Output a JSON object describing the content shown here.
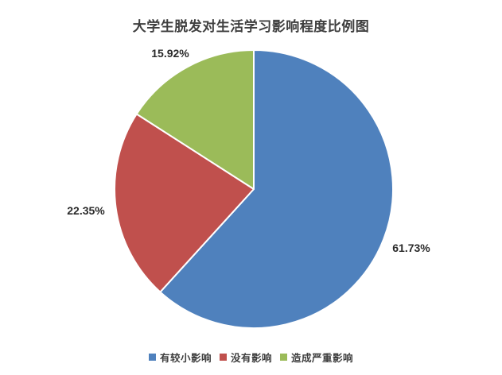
{
  "chart_data": {
    "type": "pie",
    "title": "大学生脱发对生活学习影响程度比例图",
    "categories": [
      "有较小影响",
      "没有影响",
      "造成严重影响"
    ],
    "values": [
      61.73,
      22.35,
      15.92
    ],
    "labels": [
      "61.73%",
      "22.35%",
      "15.92%"
    ],
    "colors": [
      "#4f81bd",
      "#c0504d",
      "#9bbb59"
    ],
    "start_angle_deg": 0,
    "direction": "clockwise",
    "legend_position": "bottom",
    "separator_color": "#ffffff",
    "background_color": "#ffffff",
    "title_color": "#3e3e3e",
    "label_color": "#2b2b2b"
  }
}
